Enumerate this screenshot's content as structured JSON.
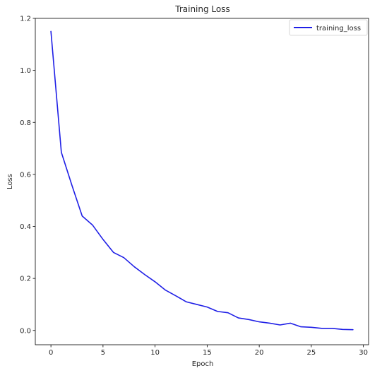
{
  "chart_data": {
    "type": "line",
    "title": "Training Loss",
    "xlabel": "Epoch",
    "ylabel": "Loss",
    "xlim": [
      -1.5,
      30.5
    ],
    "ylim": [
      -0.055,
      1.2
    ],
    "xticks": [
      0,
      5,
      10,
      15,
      20,
      25,
      30
    ],
    "yticks": [
      0.0,
      0.2,
      0.4,
      0.6,
      0.8,
      1.0,
      1.2
    ],
    "xtick_labels": [
      "0",
      "5",
      "10",
      "15",
      "20",
      "25",
      "30"
    ],
    "ytick_labels": [
      "0.0",
      "0.2",
      "0.4",
      "0.6",
      "0.8",
      "1.0",
      "1.2"
    ],
    "grid": false,
    "legend_position": "top-right",
    "series": [
      {
        "name": "training_loss",
        "color": "#1f1fe6",
        "x": [
          0,
          1,
          2,
          3,
          4,
          5,
          6,
          7,
          8,
          9,
          10,
          11,
          12,
          13,
          14,
          15,
          16,
          17,
          18,
          19,
          20,
          21,
          22,
          23,
          24,
          25,
          26,
          27,
          28,
          29
        ],
        "y": [
          1.15,
          0.685,
          0.56,
          0.44,
          0.405,
          0.35,
          0.3,
          0.28,
          0.245,
          0.215,
          0.187,
          0.155,
          0.133,
          0.11,
          0.1,
          0.09,
          0.073,
          0.068,
          0.048,
          0.042,
          0.033,
          0.028,
          0.021,
          0.028,
          0.014,
          0.012,
          0.008,
          0.008,
          0.004,
          0.003
        ]
      }
    ]
  }
}
